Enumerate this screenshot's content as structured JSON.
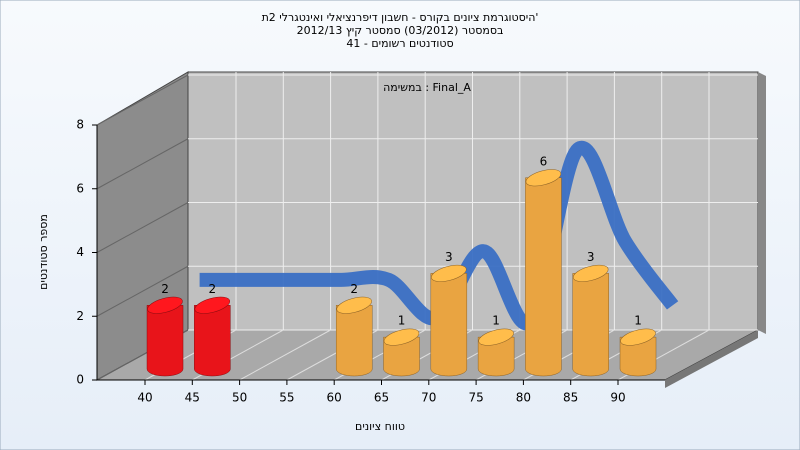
{
  "chart_data": {
    "type": "bar3d",
    "title": [
      "היסטוגרמת ציונים בקורס - חשבון דיפרנציאלי ואינטגרלי 2ת'",
      "בסמסטר  (03/2012)  סמסטר קיץ 2012/13",
      "סטודנטים רשומים - 41"
    ],
    "annotation": "במשימה : Final_A",
    "x_label": "טווח ציונים",
    "y_label": "מספר סטודנטים",
    "categories": [
      "40",
      "45",
      "50",
      "55",
      "60",
      "65",
      "70",
      "75",
      "80",
      "85",
      "90"
    ],
    "values": [
      2,
      2,
      null,
      null,
      2,
      1,
      3,
      1,
      6,
      3,
      1
    ],
    "colors": [
      "#e8141a",
      "#e8141a",
      null,
      null,
      "#e9a441",
      "#e9a441",
      "#e9a441",
      "#e9a441",
      "#e9a441",
      "#e9a441",
      "#e9a441"
    ],
    "trend": {
      "color": "#3a6fc4",
      "values": [
        2.2,
        2.2,
        2.2,
        2.2,
        2.2,
        1.0,
        3.1,
        0.9,
        6.3,
        3.4,
        1.4
      ]
    },
    "ylim": [
      0,
      8
    ],
    "yticks": [
      0,
      2,
      4,
      6,
      8
    ],
    "grid": true
  }
}
